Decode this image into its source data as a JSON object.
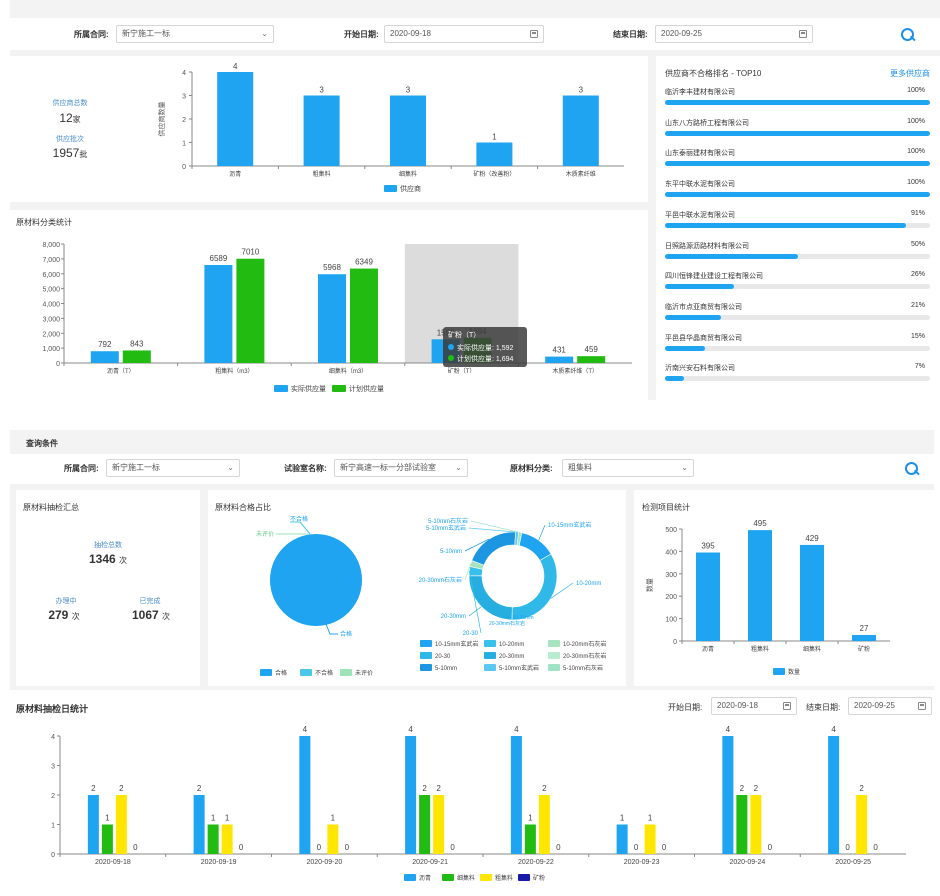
{
  "filter1": {
    "contract_label": "所属合同:",
    "contract_value": "新宁施工一标",
    "start_label": "开始日期:",
    "start_value": "2020-09-18",
    "end_label": "结束日期:",
    "end_value": "2020-09-25"
  },
  "supplier_summary": {
    "count_label": "供应商总数",
    "count_value": "12",
    "count_unit": "家",
    "batch_label": "供应批次",
    "batch_value": "1957",
    "batch_unit": "批"
  },
  "ranking": {
    "title": "供应商不合格排名 - TOP10",
    "more": "更多供应商",
    "items": [
      {
        "name": "临沂李丰建材有限公司",
        "pct": "100%",
        "value": 100
      },
      {
        "name": "山东八方路桥工程有限公司",
        "pct": "100%",
        "value": 100
      },
      {
        "name": "山东泰丽建材有限公司",
        "pct": "100%",
        "value": 100
      },
      {
        "name": "东平中联水泥有限公司",
        "pct": "100%",
        "value": 100
      },
      {
        "name": "平邑中联水泥有限公司",
        "pct": "91%",
        "value": 91
      },
      {
        "name": "日照路源沥路材料有限公司",
        "pct": "50%",
        "value": 50
      },
      {
        "name": "四川恒锋建业建设工程有限公司",
        "pct": "26%",
        "value": 26
      },
      {
        "name": "临沂市点亚商贸有限公司",
        "pct": "21%",
        "value": 21
      },
      {
        "name": "平邑县华晶商贸有限公司",
        "pct": "15%",
        "value": 15
      },
      {
        "name": "沂南兴安石料有限公司",
        "pct": "7%",
        "value": 7
      }
    ]
  },
  "section2": {
    "title": "原材料分类统计"
  },
  "query2": {
    "title": "查询条件",
    "contract_label": "所属合同:",
    "contract_value": "新宁施工一标",
    "lab_label": "试验室名称:",
    "lab_value": "新宁高速一标一分部试验室",
    "category_label": "原材料分类:",
    "category_value": "粗集料"
  },
  "inspection": {
    "title": "原材料抽检汇总",
    "total_label": "抽检总数",
    "total_value": "1346",
    "total_unit": "次",
    "processing_label": "办理中",
    "processing_value": "279",
    "processing_unit": "次",
    "done_label": "已完成",
    "done_value": "1067",
    "done_unit": "次"
  },
  "qualification": {
    "title": "原材料合格占比"
  },
  "test_items": {
    "title": "检测项目统计"
  },
  "daily": {
    "title": "原材料抽检日统计",
    "start_label": "开始日期:",
    "start_value": "2020-09-18",
    "end_label": "结束日期:",
    "end_value": "2020-09-25"
  },
  "colors": {
    "blue": "#1ea4f0",
    "green": "#22bb11",
    "yellow": "#ffe600",
    "navy": "#1a1aa8",
    "light_blue": "#4bc8e8",
    "light_green": "#9de3b8"
  },
  "chart_data": [
    {
      "type": "bar",
      "title": "",
      "ylabel": "供应商数量",
      "ylim": [
        0,
        4
      ],
      "categories": [
        "沥青",
        "粗集料",
        "细集料",
        "矿粉（改善粉）",
        "木质素纤维"
      ],
      "series": [
        {
          "name": "供应商",
          "values": [
            4,
            3,
            3,
            1,
            3
          ]
        }
      ]
    },
    {
      "type": "bar",
      "title": "原材料分类统计",
      "ylim": [
        0,
        8000
      ],
      "yticks": [
        "0",
        "1,000",
        "2,000",
        "3,000",
        "4,000",
        "5,000",
        "6,000",
        "7,000",
        "8,000"
      ],
      "categories": [
        "沥青（T）",
        "粗集料（m3）",
        "细集料（m3）",
        "矿粉（T）",
        "木质素纤维（T）"
      ],
      "series": [
        {
          "name": "实际供应量",
          "values": [
            792,
            6589,
            5968,
            1592,
            431
          ]
        },
        {
          "name": "计划供应量",
          "values": [
            843,
            7010,
            6349,
            1694,
            459
          ]
        }
      ],
      "tooltip": {
        "title": "矿粉（T）",
        "lines": [
          "实际供应量: 1,592",
          "计划供应量: 1,694"
        ]
      }
    },
    {
      "type": "pie",
      "labels": [
        "合格",
        "不合格",
        "未评价"
      ],
      "values": [
        100,
        0,
        0
      ]
    },
    {
      "type": "pie",
      "legend": [
        "10-15mm玄武岩",
        "10-20mm",
        "10-20mm石灰岩",
        "20-30",
        "20-30mm",
        "20-30mm石灰岩",
        "5-10mm",
        "5-10mm玄武岩",
        "5-10mm石灰岩"
      ],
      "labels": [
        "10-15mm玄武岩",
        "10-20mm",
        "20-30mm",
        "20-30",
        "20-30mm石灰岩",
        "5-10mm",
        "5-10mm玄武岩",
        "5-10mm石灰岩"
      ],
      "values": [
        12,
        30,
        22,
        3,
        2,
        18,
        1,
        1
      ],
      "inner_labels": [
        "20-30mm石灰岩",
        "20-30mm"
      ]
    },
    {
      "type": "bar",
      "ylim": [
        0,
        500
      ],
      "ylabel": "数量",
      "categories": [
        "沥青",
        "粗集料",
        "细集料",
        "矿粉"
      ],
      "series": [
        {
          "name": "数量",
          "values": [
            395,
            495,
            429,
            27
          ]
        }
      ]
    },
    {
      "type": "bar",
      "ylim": [
        0,
        4
      ],
      "categories": [
        "2020-09-18",
        "2020-09-19",
        "2020-09-20",
        "2020-09-21",
        "2020-09-22",
        "2020-09-23",
        "2020-09-24",
        "2020-09-25"
      ],
      "series": [
        {
          "name": "沥青",
          "values": [
            2,
            2,
            4,
            4,
            4,
            1,
            4,
            4
          ]
        },
        {
          "name": "细集料",
          "values": [
            1,
            1,
            0,
            2,
            1,
            0,
            2,
            0
          ]
        },
        {
          "name": "粗集料",
          "values": [
            2,
            1,
            1,
            2,
            2,
            1,
            2,
            2
          ]
        },
        {
          "name": "矿粉",
          "values": [
            0,
            0,
            0,
            0,
            0,
            0,
            0,
            0
          ]
        }
      ]
    }
  ]
}
